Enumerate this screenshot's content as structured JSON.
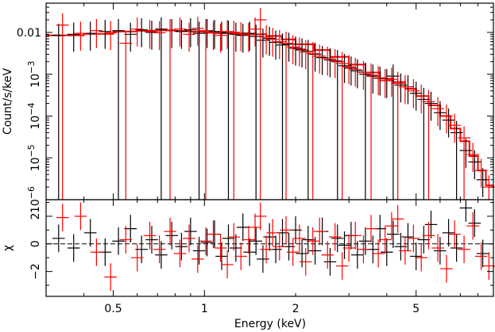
{
  "chart_data": [
    {
      "type": "scatter",
      "title": "",
      "xlabel": "",
      "ylabel": "Count/s/keV",
      "xscale": "log",
      "yscale": "log",
      "xlim": [
        0.3,
        9.0
      ],
      "ylim": [
        1e-06,
        0.05
      ],
      "yticks": [
        {
          "value": 0.01,
          "label": "0.01"
        },
        {
          "value": 0.001,
          "base": "10",
          "exp": "−3"
        },
        {
          "value": 0.0001,
          "base": "10",
          "exp": "−4"
        },
        {
          "value": 1e-05,
          "base": "10",
          "exp": "−5"
        },
        {
          "value": 1e-06,
          "base": "10",
          "exp": "−6"
        }
      ],
      "series": [
        {
          "color": "#000000",
          "style": "data-with-error-bars",
          "x": [
            0.33,
            0.37,
            0.42,
            0.47,
            0.52,
            0.57,
            0.62,
            0.67,
            0.72,
            0.78,
            0.84,
            0.9,
            0.96,
            1.02,
            1.08,
            1.14,
            1.2,
            1.27,
            1.34,
            1.41,
            1.48,
            1.56,
            1.64,
            1.72,
            1.81,
            1.9,
            2.0,
            2.1,
            2.2,
            2.32,
            2.45,
            2.6,
            2.75,
            2.9,
            3.05,
            3.2,
            3.4,
            3.6,
            3.8,
            4.0,
            4.2,
            4.45,
            4.7,
            5.0,
            5.3,
            5.6,
            6.0,
            6.4,
            6.8,
            7.3,
            7.8,
            8.3
          ],
          "y": [
            0.0085,
            0.009,
            0.0095,
            0.0105,
            0.011,
            0.009,
            0.0115,
            0.01,
            0.012,
            0.011,
            0.0105,
            0.0115,
            0.0095,
            0.011,
            0.0105,
            0.0095,
            0.01,
            0.009,
            0.0085,
            0.0095,
            0.008,
            0.0065,
            0.0072,
            0.0058,
            0.005,
            0.0052,
            0.0042,
            0.0038,
            0.0035,
            0.003,
            0.0025,
            0.0022,
            0.002,
            0.0016,
            0.0014,
            0.0012,
            0.001,
            0.0009,
            0.0008,
            0.0007,
            0.0009,
            0.00055,
            0.0005,
            0.00035,
            0.00025,
            0.0002,
            0.00012,
            8e-05,
            4e-05,
            1.5e-05,
            8e-06,
            3e-06
          ]
        },
        {
          "color": "#ff0000",
          "style": "data-with-error-bars",
          "x": [
            0.34,
            0.39,
            0.44,
            0.49,
            0.55,
            0.6,
            0.66,
            0.71,
            0.77,
            0.83,
            0.89,
            0.95,
            1.01,
            1.07,
            1.13,
            1.19,
            1.25,
            1.32,
            1.4,
            1.47,
            1.53,
            1.6,
            1.68,
            1.77,
            1.86,
            1.96,
            2.06,
            2.16,
            2.28,
            2.4,
            2.55,
            2.7,
            2.85,
            3.0,
            3.15,
            3.35,
            3.55,
            3.75,
            3.95,
            4.15,
            4.35,
            4.6,
            4.9,
            5.2,
            5.5,
            5.9,
            6.3,
            6.7,
            7.2,
            7.7,
            8.2,
            8.7
          ],
          "y": [
            0.015,
            0.0095,
            0.011,
            0.0098,
            0.0055,
            0.012,
            0.0105,
            0.0098,
            0.011,
            0.012,
            0.009,
            0.0125,
            0.011,
            0.0098,
            0.0085,
            0.0105,
            0.01,
            0.0092,
            0.0088,
            0.012,
            0.02,
            0.0078,
            0.0068,
            0.006,
            0.0055,
            0.0045,
            0.004,
            0.0034,
            0.0031,
            0.0027,
            0.0024,
            0.0021,
            0.0018,
            0.0015,
            0.0013,
            0.0011,
            0.00095,
            0.00082,
            0.0007,
            0.00075,
            0.0006,
            0.0005,
            0.0004,
            0.0003,
            0.00022,
            0.00015,
            0.0001,
            6e-05,
            3e-05,
            1.2e-05,
            5e-06,
            2e-06
          ]
        },
        {
          "color": "#ff0000",
          "style": "model-step",
          "x": [
            0.3,
            0.4,
            0.5,
            0.6,
            0.7,
            0.8,
            0.9,
            1.0,
            1.2,
            1.4,
            1.6,
            1.8,
            2.0,
            2.3,
            2.6,
            3.0,
            3.4,
            3.8,
            4.2,
            4.6,
            5.0,
            5.5,
            6.0,
            6.5,
            7.0,
            7.5,
            8.0,
            8.5,
            9.0
          ],
          "y": [
            0.0085,
            0.0092,
            0.0105,
            0.011,
            0.0112,
            0.0108,
            0.0104,
            0.0098,
            0.0095,
            0.009,
            0.0082,
            0.0068,
            0.0052,
            0.0038,
            0.0026,
            0.0017,
            0.0011,
            0.00078,
            0.00065,
            0.00045,
            0.0003,
            0.00018,
            0.0001,
            5e-05,
            2.5e-05,
            1.1e-05,
            5e-06,
            2.2e-06,
            1e-06
          ]
        }
      ]
    },
    {
      "type": "scatter",
      "title": "",
      "xlabel": "Energy (keV)",
      "ylabel": "χ",
      "xscale": "log",
      "xlim": [
        0.3,
        9.0
      ],
      "ylim": [
        -3.8,
        3.2
      ],
      "xticks": [
        {
          "value": 0.5,
          "label": "0.5"
        },
        {
          "value": 1,
          "label": "1"
        },
        {
          "value": 2,
          "label": "2"
        },
        {
          "value": 5,
          "label": "5"
        }
      ],
      "yticks": [
        {
          "value": 2,
          "label": "2"
        },
        {
          "value": 0,
          "label": "0"
        },
        {
          "value": -2,
          "label": "−2"
        }
      ],
      "series": [
        {
          "color": "#000000",
          "style": "residuals",
          "x": [
            0.33,
            0.37,
            0.42,
            0.47,
            0.52,
            0.57,
            0.62,
            0.67,
            0.72,
            0.78,
            0.84,
            0.9,
            0.96,
            1.02,
            1.08,
            1.14,
            1.2,
            1.27,
            1.34,
            1.41,
            1.48,
            1.56,
            1.64,
            1.72,
            1.81,
            1.9,
            2.0,
            2.1,
            2.2,
            2.32,
            2.45,
            2.6,
            2.75,
            2.9,
            3.05,
            3.2,
            3.4,
            3.6,
            3.8,
            4.0,
            4.2,
            4.45,
            4.7,
            5.0,
            5.3,
            5.6,
            6.0,
            6.4,
            6.8,
            7.3,
            7.8,
            8.3
          ],
          "y": [
            0.4,
            -0.3,
            0.8,
            -0.6,
            0.2,
            1.1,
            -0.4,
            0.3,
            -0.8,
            0.6,
            -0.2,
            0.9,
            -0.5,
            0.1,
            0.7,
            -0.9,
            0.4,
            -0.3,
            1.2,
            -0.6,
            0.2,
            -1.1,
            0.5,
            -0.4,
            0.8,
            -0.2,
            1.0,
            -0.7,
            0.3,
            -0.5,
            0.9,
            -1.3,
            0.4,
            -0.1,
            0.6,
            -0.8,
            0.2,
            -0.4,
            1.1,
            -0.6,
            0.7,
            -0.2,
            0.5,
            -0.9,
            0.3,
            1.4,
            -0.5,
            0.8,
            -0.3,
            2.6,
            1.5,
            -0.7
          ]
        },
        {
          "color": "#ff0000",
          "style": "residuals",
          "x": [
            0.34,
            0.39,
            0.44,
            0.49,
            0.55,
            0.6,
            0.66,
            0.71,
            0.77,
            0.83,
            0.89,
            0.95,
            1.01,
            1.07,
            1.13,
            1.19,
            1.25,
            1.32,
            1.4,
            1.47,
            1.53,
            1.6,
            1.68,
            1.77,
            1.86,
            1.96,
            2.06,
            2.16,
            2.28,
            2.4,
            2.55,
            2.7,
            2.85,
            3.0,
            3.15,
            3.35,
            3.55,
            3.75,
            3.95,
            4.15,
            4.35,
            4.6,
            4.9,
            5.2,
            5.5,
            5.9,
            6.3,
            6.7,
            7.2,
            7.7,
            8.2,
            8.7
          ],
          "y": [
            1.9,
            2.0,
            -0.6,
            -2.4,
            0.3,
            -1.0,
            0.6,
            -0.4,
            0.9,
            -0.7,
            0.4,
            -1.1,
            0.2,
            0.7,
            -0.3,
            -1.5,
            0.5,
            -0.9,
            0.3,
            1.2,
            2.0,
            -0.4,
            0.8,
            -0.2,
            1.0,
            -0.6,
            0.4,
            -1.3,
            0.2,
            0.9,
            -0.8,
            0.5,
            -1.6,
            -0.3,
            0.6,
            -0.4,
            1.1,
            -0.7,
            0.3,
            1.3,
            1.8,
            -0.5,
            0.4,
            -1.0,
            0.6,
            -0.3,
            -1.8,
            0.7,
            -0.4,
            1.3,
            -0.9,
            -1.6
          ]
        }
      ]
    }
  ]
}
